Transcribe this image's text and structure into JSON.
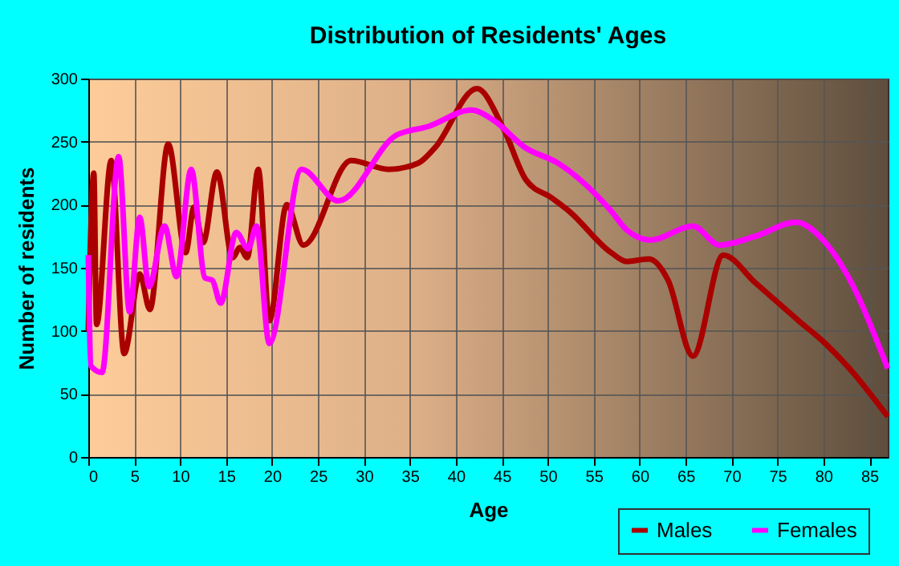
{
  "chart_data": {
    "type": "line",
    "title": "Distribution of Residents' Ages",
    "xlabel": "Age",
    "ylabel": "Number of residents",
    "xlim": [
      0,
      87
    ],
    "xticks": [
      0,
      5,
      10,
      15,
      20,
      25,
      30,
      35,
      40,
      45,
      50,
      55,
      60,
      65,
      70,
      75,
      80,
      85
    ],
    "ylim": [
      0,
      300
    ],
    "yticks": [
      0,
      50,
      100,
      150,
      200,
      250,
      300
    ],
    "grid": true,
    "legend": "bottom right",
    "line_style": "solid",
    "series": [
      {
        "name": "Males",
        "color": "#aa0000",
        "x": [
          0,
          0.6,
          0.9,
          2.5,
          3.9,
          5.6,
          6.7,
          8.7,
          10.6,
          11.5,
          12.5,
          14,
          15.7,
          16.5,
          17.3,
          18.5,
          19.7,
          21.6,
          23.4,
          28.6,
          32.7,
          35.9,
          37.7,
          42.3,
          45.2,
          47.6,
          50.5,
          52.3,
          56.9,
          58.6,
          61,
          63.1,
          65.8,
          69.1,
          72.6,
          77.3,
          80.2,
          82.6,
          87
        ],
        "values": [
          100,
          225,
          105,
          235,
          82,
          145,
          117,
          248,
          162,
          198,
          170,
          226,
          158,
          166,
          158,
          228,
          108,
          200,
          168,
          235,
          228,
          233,
          245,
          292,
          260,
          220,
          205,
          195,
          162,
          155,
          157,
          140,
          80,
          160,
          138,
          108,
          90,
          72,
          32
        ]
      },
      {
        "name": "Females",
        "color": "#ff00ff",
        "x": [
          0,
          0.3,
          1.5,
          3.3,
          4.5,
          5.6,
          6.6,
          8.3,
          9.6,
          11.2,
          12.7,
          13.5,
          14.4,
          16.1,
          17.4,
          18.3,
          19.7,
          23.2,
          27.2,
          33.5,
          37,
          41.7,
          44.1,
          47.6,
          51.1,
          56.9,
          58.6,
          61.2,
          65.8,
          68.7,
          72.6,
          77,
          80.2,
          83.2,
          87
        ],
        "values": [
          160,
          72,
          67,
          238,
          115,
          190,
          135,
          183,
          143,
          228,
          142,
          140,
          122,
          178,
          165,
          183,
          90,
          228,
          203,
          255,
          262,
          275,
          267,
          245,
          233,
          195,
          180,
          172,
          183,
          168,
          175,
          186,
          170,
          136,
          70
        ]
      }
    ]
  }
}
